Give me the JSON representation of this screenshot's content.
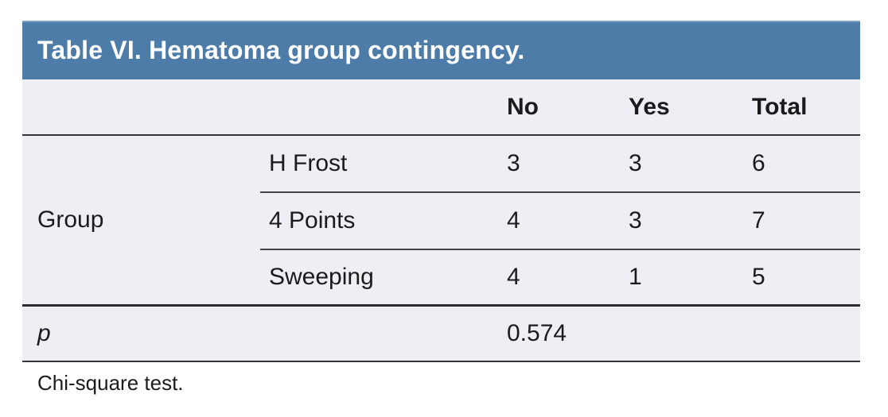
{
  "title": {
    "text": "Table VI. Hematoma group contingency."
  },
  "table": {
    "header": {
      "no": "No",
      "yes": "Yes",
      "total": "Total"
    },
    "group_label": "Group",
    "rows": [
      {
        "label": "H Frost",
        "no": "3",
        "yes": "3",
        "total": "6"
      },
      {
        "label": "4 Points",
        "no": "4",
        "yes": "3",
        "total": "7"
      },
      {
        "label": "Sweeping",
        "no": "4",
        "yes": "1",
        "total": "5"
      }
    ],
    "p_row": {
      "label": "p",
      "value": "0.574"
    }
  },
  "footnote": "Chi-square test.",
  "colors": {
    "title_band": "#4d7ca9",
    "title_text": "#ffffff",
    "body_background": "#edeff5",
    "rule": "#363636",
    "text": "#1b1b1b"
  }
}
